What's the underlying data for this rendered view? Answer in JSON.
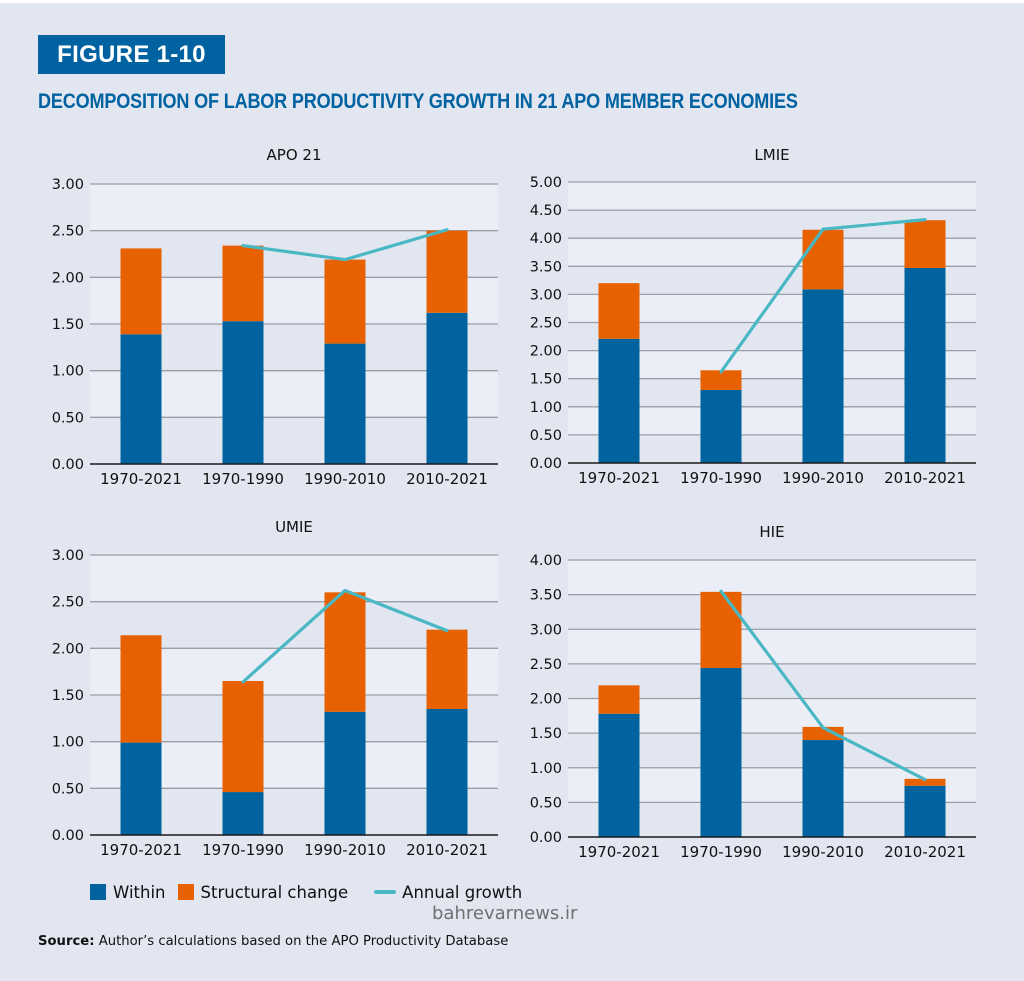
{
  "figure_label": "FIGURE 1-10",
  "figure_title": "DECOMPOSITION OF LABOR PRODUCTIVITY GROWTH IN 21 APO MEMBER ECONOMIES",
  "colors": {
    "brand_blue": "#0062a1",
    "within": "#00629e",
    "structural_change": "#e86100",
    "annual_growth": "#4ab8c4",
    "background": "#e1e6f0",
    "band_light": "#ebeef6",
    "grid": "#9a9ea6"
  },
  "legend": {
    "items": [
      {
        "label": "Within",
        "kind": "box",
        "color": "#00629e"
      },
      {
        "label": "Structural change",
        "kind": "box",
        "color": "#e86100"
      },
      {
        "label": "Annual growth",
        "kind": "line",
        "color": "#4ab8c4"
      }
    ]
  },
  "watermark": "bahrevarnews.ir",
  "source": {
    "label": "Source:",
    "text": " Author’s calculations based on the APO Productivity Database"
  },
  "chart_data": [
    {
      "type": "bar",
      "stacked": true,
      "title": "APO 21",
      "categories": [
        "1970-2021",
        "1970-1990",
        "1990-2010",
        "2010-2021"
      ],
      "yticks": [
        "0.00",
        "0.50",
        "1.00",
        "1.50",
        "2.00",
        "2.50",
        "3.00"
      ],
      "ylim": [
        0,
        3
      ],
      "series": [
        {
          "name": "Within",
          "type": "bar",
          "values": [
            1.39,
            1.53,
            1.29,
            1.62
          ]
        },
        {
          "name": "Structural change",
          "type": "bar",
          "values": [
            0.92,
            0.81,
            0.9,
            0.88
          ]
        },
        {
          "name": "Annual growth",
          "type": "line",
          "values": [
            null,
            2.34,
            2.19,
            2.51
          ]
        }
      ],
      "grid": true,
      "xlabel": "",
      "ylabel": ""
    },
    {
      "type": "bar",
      "stacked": true,
      "title": "LMIE",
      "categories": [
        "1970-2021",
        "1970-1990",
        "1990-2010",
        "2010-2021"
      ],
      "yticks": [
        "0.00",
        "0.50",
        "1.00",
        "1.50",
        "2.00",
        "2.50",
        "3.00",
        "3.50",
        "4.00",
        "4.50",
        "5.00"
      ],
      "ylim": [
        0,
        5
      ],
      "series": [
        {
          "name": "Within",
          "type": "bar",
          "values": [
            2.21,
            1.3,
            3.09,
            3.47
          ]
        },
        {
          "name": "Structural change",
          "type": "bar",
          "values": [
            0.99,
            0.35,
            1.06,
            0.85
          ]
        },
        {
          "name": "Annual growth",
          "type": "line",
          "values": [
            null,
            1.62,
            4.16,
            4.33
          ]
        }
      ],
      "grid": true,
      "xlabel": "",
      "ylabel": ""
    },
    {
      "type": "bar",
      "stacked": true,
      "title": "UMIE",
      "categories": [
        "1970-2021",
        "1970-1990",
        "1990-2010",
        "2010-2021"
      ],
      "yticks": [
        "0.00",
        "0.50",
        "1.00",
        "1.50",
        "2.00",
        "2.50",
        "3.00"
      ],
      "ylim": [
        0,
        3
      ],
      "series": [
        {
          "name": "Within",
          "type": "bar",
          "values": [
            0.99,
            0.46,
            1.32,
            1.35
          ]
        },
        {
          "name": "Structural change",
          "type": "bar",
          "values": [
            1.15,
            1.19,
            1.28,
            0.85
          ]
        },
        {
          "name": "Annual growth",
          "type": "line",
          "values": [
            null,
            1.64,
            2.62,
            2.19
          ]
        }
      ],
      "grid": true,
      "xlabel": "",
      "ylabel": ""
    },
    {
      "type": "bar",
      "stacked": true,
      "title": "HIE",
      "categories": [
        "1970-2021",
        "1970-1990",
        "1990-2010",
        "2010-2021"
      ],
      "yticks": [
        "0.00",
        "0.50",
        "1.00",
        "1.50",
        "2.00",
        "2.50",
        "3.00",
        "3.50",
        "4.00"
      ],
      "ylim": [
        0,
        4
      ],
      "series": [
        {
          "name": "Within",
          "type": "bar",
          "values": [
            1.78,
            2.44,
            1.4,
            0.74
          ]
        },
        {
          "name": "Structural change",
          "type": "bar",
          "values": [
            0.41,
            1.1,
            0.19,
            0.1
          ]
        },
        {
          "name": "Annual growth",
          "type": "line",
          "values": [
            null,
            3.55,
            1.58,
            0.83
          ]
        }
      ],
      "grid": true,
      "xlabel": "",
      "ylabel": ""
    }
  ]
}
